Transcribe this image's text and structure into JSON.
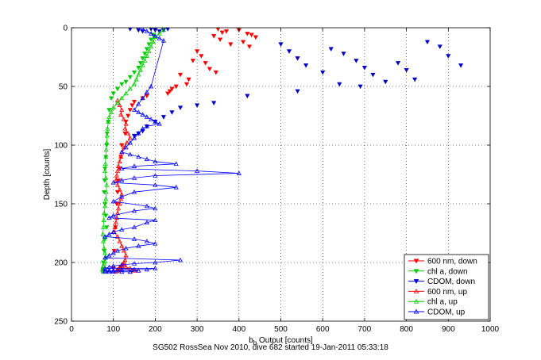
{
  "chart_data": {
    "type": "scatter",
    "title": "",
    "xlabel_main": "b",
    "xlabel_sub": "b",
    "xlabel_rest": " Output [counts]",
    "ylabel": "Depth [counts]",
    "xlim": [
      0,
      1000
    ],
    "ylim": [
      0,
      250
    ],
    "y_reversed": true,
    "grid": true,
    "grid_style": "dotted",
    "legend_position": "bottom-right",
    "x_ticks": [
      0,
      100,
      200,
      300,
      400,
      500,
      600,
      700,
      800,
      900,
      1000
    ],
    "y_ticks": [
      0,
      50,
      100,
      150,
      200,
      250
    ],
    "series": [
      {
        "name": "600 nm, down",
        "color": "#ff0000",
        "marker": "triangle-down",
        "connected": false,
        "x": [
          350,
          360,
          340,
          370,
          355,
          380,
          400,
          420,
          430,
          410,
          440,
          425,
          300,
          310,
          290,
          320,
          330,
          345,
          260,
          280,
          275,
          250,
          240,
          235,
          230,
          180,
          170,
          150,
          145,
          140,
          135,
          130,
          128,
          120,
          118,
          115,
          112,
          110,
          108,
          105,
          102,
          100
        ],
        "y": [
          1,
          4,
          7,
          3,
          10,
          14,
          2,
          5,
          6,
          12,
          8,
          16,
          20,
          24,
          28,
          30,
          35,
          38,
          40,
          44,
          48,
          50,
          52,
          54,
          56,
          58,
          60,
          63,
          66,
          70,
          75,
          80,
          90,
          100,
          110,
          120,
          130,
          140,
          150,
          170,
          190,
          205
        ]
      },
      {
        "name": "chl a, down",
        "color": "#00cc00",
        "marker": "triangle-down",
        "connected": false,
        "x": [
          200,
          195,
          190,
          185,
          180,
          175,
          170,
          165,
          160,
          150,
          140,
          130,
          120,
          110,
          100,
          95,
          90,
          88,
          85,
          84,
          82,
          80,
          79,
          78,
          80,
          82,
          84,
          80,
          78,
          76,
          75
        ],
        "y": [
          2,
          6,
          10,
          14,
          18,
          22,
          26,
          30,
          34,
          38,
          42,
          46,
          48,
          52,
          56,
          60,
          70,
          80,
          90,
          100,
          110,
          120,
          130,
          140,
          150,
          160,
          170,
          180,
          190,
          200,
          206
        ]
      },
      {
        "name": "CDOM, down",
        "color": "#0000cc",
        "marker": "triangle-down",
        "connected": false,
        "x": [
          140,
          160,
          170,
          190,
          200,
          210,
          220,
          230,
          500,
          520,
          540,
          560,
          600,
          620,
          650,
          680,
          700,
          720,
          750,
          780,
          800,
          820,
          850,
          880,
          900,
          930,
          690,
          640,
          540,
          420,
          340,
          300,
          260,
          240,
          220,
          200,
          180,
          170,
          160,
          150
        ],
        "y": [
          1,
          2,
          3,
          1,
          2,
          3,
          2,
          1,
          14,
          20,
          26,
          32,
          38,
          18,
          22,
          28,
          34,
          40,
          46,
          30,
          36,
          44,
          12,
          16,
          24,
          32,
          50,
          48,
          54,
          58,
          64,
          66,
          68,
          72,
          76,
          80,
          84,
          88,
          90,
          92
        ]
      },
      {
        "name": "600 nm, up",
        "color": "#ff0000",
        "marker": "triangle-up",
        "connected": true,
        "x": [
          110,
          115,
          120,
          118,
          125,
          130,
          128,
          135,
          140,
          132,
          125,
          120,
          118,
          115,
          112,
          110,
          108,
          106,
          110,
          115,
          120,
          118,
          115,
          112,
          110,
          108,
          106,
          104,
          102,
          110,
          115,
          120,
          125,
          130,
          128,
          125,
          120,
          118,
          115,
          112,
          110,
          108,
          106,
          110,
          115,
          120,
          125,
          130,
          140,
          150,
          160,
          150,
          140
        ],
        "y": [
          62,
          66,
          70,
          74,
          78,
          82,
          86,
          90,
          94,
          98,
          102,
          106,
          110,
          114,
          118,
          122,
          126,
          130,
          134,
          138,
          142,
          146,
          150,
          154,
          158,
          162,
          166,
          170,
          174,
          178,
          182,
          186,
          190,
          194,
          198,
          200,
          202,
          204,
          205,
          206,
          207,
          207,
          208,
          206,
          204,
          203,
          202,
          204,
          205,
          206,
          207,
          207,
          208
        ]
      },
      {
        "name": "chl a, up",
        "color": "#00cc00",
        "marker": "triangle-up",
        "connected": true,
        "x": [
          220,
          210,
          200,
          195,
          190,
          185,
          180,
          175,
          170,
          165,
          160,
          155,
          150,
          140,
          130,
          120,
          110,
          100,
          95,
          90,
          88,
          86,
          85,
          84,
          83,
          82,
          81,
          80,
          82,
          84,
          83,
          82,
          80,
          78,
          77,
          76,
          75,
          76,
          78,
          80,
          82,
          80,
          78,
          76,
          75,
          74,
          75,
          76
        ],
        "y": [
          2,
          5,
          8,
          12,
          16,
          20,
          24,
          28,
          32,
          36,
          40,
          44,
          48,
          52,
          56,
          60,
          64,
          68,
          72,
          76,
          80,
          86,
          92,
          98,
          104,
          110,
          116,
          122,
          128,
          134,
          140,
          146,
          152,
          158,
          164,
          170,
          176,
          182,
          188,
          192,
          196,
          199,
          201,
          203,
          205,
          206,
          207,
          208
        ]
      },
      {
        "name": "CDOM, up",
        "color": "#0000ff",
        "marker": "triangle-up",
        "connected": true,
        "x": [
          170,
          180,
          190,
          200,
          210,
          220,
          190,
          180,
          170,
          160,
          150,
          160,
          170,
          180,
          190,
          200,
          210,
          180,
          170,
          160,
          150,
          140,
          130,
          120,
          140,
          160,
          180,
          200,
          250,
          150,
          120,
          300,
          400,
          200,
          150,
          120,
          100,
          200,
          250,
          150,
          120,
          100,
          180,
          200,
          150,
          100,
          90,
          200,
          180,
          150,
          120,
          100,
          90,
          80,
          150,
          180,
          200,
          160,
          130,
          110,
          100,
          90,
          80,
          260,
          200,
          150,
          120,
          100,
          90,
          80,
          200,
          180,
          150,
          120,
          100,
          90,
          80,
          160,
          140,
          120,
          100,
          90,
          80
        ],
        "y": [
          1,
          3,
          5,
          7,
          9,
          11,
          50,
          55,
          60,
          65,
          70,
          72,
          74,
          76,
          78,
          80,
          82,
          84,
          86,
          90,
          94,
          98,
          102,
          106,
          108,
          110,
          112,
          114,
          116,
          118,
          120,
          122,
          124,
          126,
          128,
          130,
          132,
          134,
          136,
          140,
          144,
          148,
          152,
          154,
          156,
          160,
          162,
          164,
          166,
          170,
          172,
          174,
          176,
          178,
          180,
          182,
          184,
          186,
          188,
          190,
          192,
          194,
          196,
          198,
          200,
          201,
          202,
          203,
          204,
          205,
          205,
          206,
          206,
          206,
          207,
          207,
          207,
          207,
          208,
          208,
          208,
          208,
          208
        ]
      }
    ]
  },
  "footer": "SG502 RossSea Nov 2010, dive 682 started 19-Jan-2011 05:33:18"
}
